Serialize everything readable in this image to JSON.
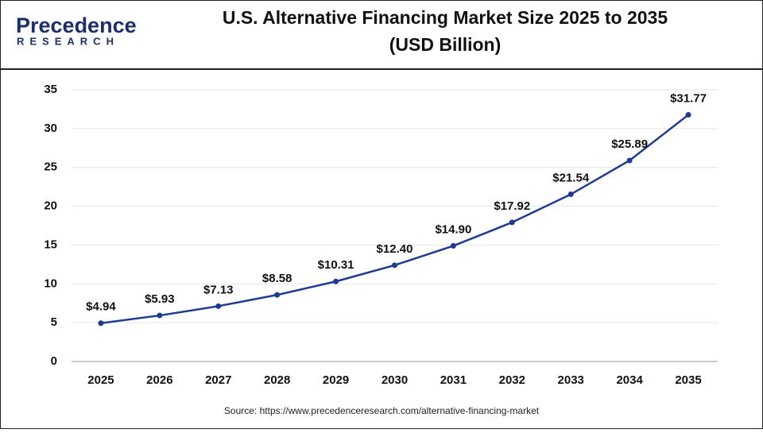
{
  "logo": {
    "name": "Precedence",
    "tagline": "RESEARCH"
  },
  "chart_data": {
    "type": "line",
    "title": [
      "U.S. Alternative Financing Market Size 2025 to 2035",
      "(USD Billion)"
    ],
    "categories": [
      "2025",
      "2026",
      "2027",
      "2028",
      "2029",
      "2030",
      "2031",
      "2032",
      "2033",
      "2034",
      "2035"
    ],
    "values": [
      4.94,
      5.93,
      7.13,
      8.58,
      10.31,
      12.4,
      14.9,
      17.92,
      21.54,
      25.89,
      31.77
    ],
    "value_labels": [
      "$4.94",
      "$5.93",
      "$7.13",
      "$8.58",
      "$10.31",
      "$12.40",
      "$14.90",
      "$17.92",
      "$21.54",
      "$25.89",
      "$31.77"
    ],
    "color": "#1f3a93",
    "ylim": [
      0,
      35
    ],
    "yticks": [
      0,
      5,
      10,
      15,
      20,
      25,
      30,
      35
    ],
    "grid": true,
    "source": "Source: https://www.precedenceresearch.com/alternative-financing-market"
  }
}
